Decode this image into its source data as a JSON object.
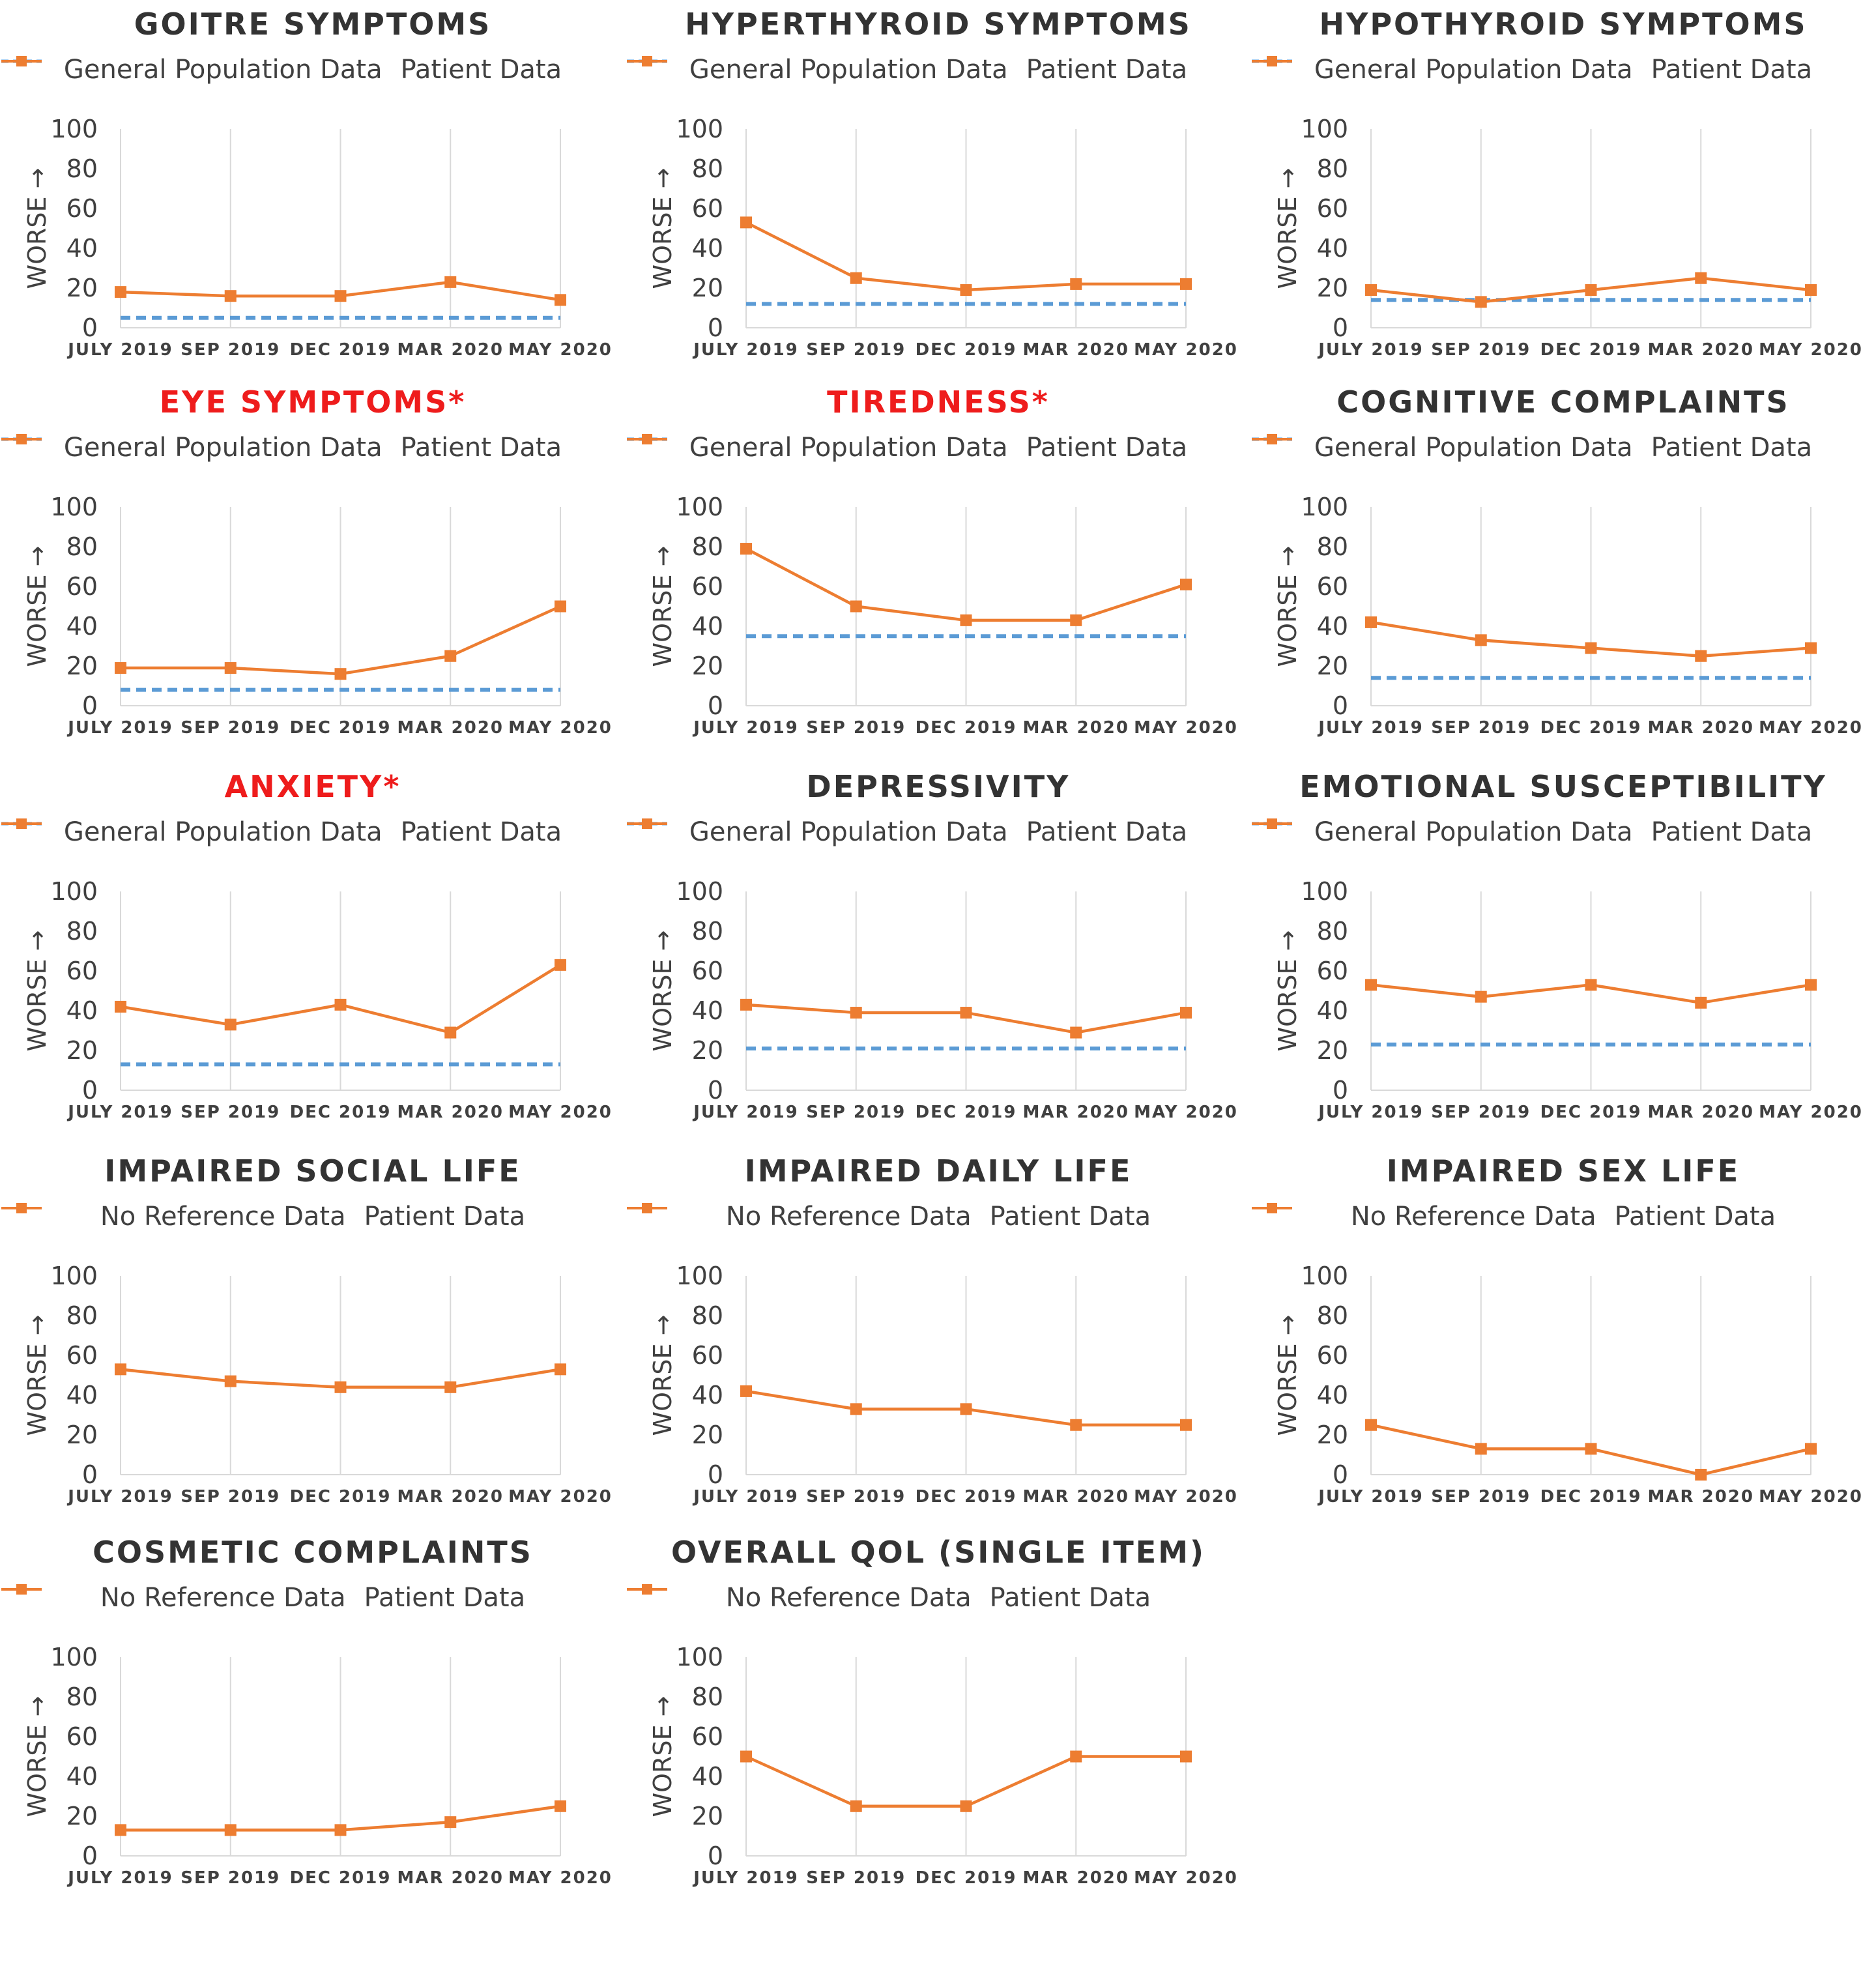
{
  "legend_general": "General Population Data",
  "legend_patient": "Patient Data",
  "legend_noref": "No Reference Data",
  "y_axis_title": "WORSE →",
  "colors": {
    "patient": "#ed7d31",
    "general": "#5b9bd5",
    "title": "#333333",
    "title_highlight": "#ee1c1c",
    "grid": "#d9d9d9"
  },
  "chart_data": [
    {
      "type": "line",
      "title": "GOITRE SYMPTOMS",
      "highlight": false,
      "categories": [
        "JULY 2019",
        "SEP 2019",
        "DEC 2019",
        "MAR 2020",
        "MAY 2020"
      ],
      "yticks": [
        "0",
        "20",
        "40",
        "60",
        "80",
        "100"
      ],
      "ylim": [
        0,
        100
      ],
      "ylabel": "WORSE →",
      "series": [
        {
          "name": "General Population Data",
          "values": [
            5,
            5,
            5,
            5,
            5
          ]
        },
        {
          "name": "Patient Data",
          "values": [
            18,
            16,
            16,
            23,
            14
          ]
        }
      ]
    },
    {
      "type": "line",
      "title": "HYPERTHYROID SYMPTOMS",
      "highlight": false,
      "categories": [
        "JULY 2019",
        "SEP 2019",
        "DEC 2019",
        "MAR 2020",
        "MAY 2020"
      ],
      "yticks": [
        "0",
        "20",
        "40",
        "60",
        "80",
        "100"
      ],
      "ylim": [
        0,
        100
      ],
      "ylabel": "WORSE →",
      "series": [
        {
          "name": "General Population Data",
          "values": [
            12,
            12,
            12,
            12,
            12
          ]
        },
        {
          "name": "Patient Data",
          "values": [
            53,
            25,
            19,
            22,
            22
          ]
        }
      ]
    },
    {
      "type": "line",
      "title": "HYPOTHYROID SYMPTOMS",
      "highlight": false,
      "categories": [
        "JULY 2019",
        "SEP 2019",
        "DEC 2019",
        "MAR 2020",
        "MAY 2020"
      ],
      "yticks": [
        "0",
        "20",
        "40",
        "60",
        "80",
        "100"
      ],
      "ylim": [
        0,
        100
      ],
      "ylabel": "WORSE →",
      "series": [
        {
          "name": "General Population Data",
          "values": [
            14,
            14,
            14,
            14,
            14
          ]
        },
        {
          "name": "Patient Data",
          "values": [
            19,
            13,
            19,
            25,
            19
          ]
        }
      ]
    },
    {
      "type": "line",
      "title": "EYE SYMPTOMS*",
      "highlight": true,
      "categories": [
        "JULY 2019",
        "SEP 2019",
        "DEC 2019",
        "MAR 2020",
        "MAY 2020"
      ],
      "yticks": [
        "0",
        "20",
        "40",
        "60",
        "80",
        "100"
      ],
      "ylim": [
        0,
        100
      ],
      "ylabel": "WORSE →",
      "series": [
        {
          "name": "General Population Data",
          "values": [
            8,
            8,
            8,
            8,
            8
          ]
        },
        {
          "name": "Patient Data",
          "values": [
            19,
            19,
            16,
            25,
            50
          ]
        }
      ]
    },
    {
      "type": "line",
      "title": "TIREDNESS*",
      "highlight": true,
      "categories": [
        "JULY 2019",
        "SEP 2019",
        "DEC 2019",
        "MAR 2020",
        "MAY 2020"
      ],
      "yticks": [
        "0",
        "20",
        "40",
        "60",
        "80",
        "100"
      ],
      "ylim": [
        0,
        100
      ],
      "ylabel": "WORSE →",
      "series": [
        {
          "name": "General Population Data",
          "values": [
            35,
            35,
            35,
            35,
            35
          ]
        },
        {
          "name": "Patient Data",
          "values": [
            79,
            50,
            43,
            43,
            61
          ]
        }
      ]
    },
    {
      "type": "line",
      "title": "COGNITIVE COMPLAINTS",
      "highlight": false,
      "categories": [
        "JULY 2019",
        "SEP 2019",
        "DEC 2019",
        "MAR 2020",
        "MAY 2020"
      ],
      "yticks": [
        "0",
        "20",
        "40",
        "60",
        "80",
        "100"
      ],
      "ylim": [
        0,
        100
      ],
      "ylabel": "WORSE →",
      "series": [
        {
          "name": "General Population Data",
          "values": [
            14,
            14,
            14,
            14,
            14
          ]
        },
        {
          "name": "Patient Data",
          "values": [
            42,
            33,
            29,
            25,
            29
          ]
        }
      ]
    },
    {
      "type": "line",
      "title": "ANXIETY*",
      "highlight": true,
      "categories": [
        "JULY 2019",
        "SEP 2019",
        "DEC 2019",
        "MAR 2020",
        "MAY 2020"
      ],
      "yticks": [
        "0",
        "20",
        "40",
        "60",
        "80",
        "100"
      ],
      "ylim": [
        0,
        100
      ],
      "ylabel": "WORSE →",
      "series": [
        {
          "name": "General Population Data",
          "values": [
            13,
            13,
            13,
            13,
            13
          ]
        },
        {
          "name": "Patient Data",
          "values": [
            42,
            33,
            43,
            29,
            63
          ]
        }
      ]
    },
    {
      "type": "line",
      "title": "DEPRESSIVITY",
      "highlight": false,
      "categories": [
        "JULY 2019",
        "SEP 2019",
        "DEC 2019",
        "MAR 2020",
        "MAY 2020"
      ],
      "yticks": [
        "0",
        "20",
        "40",
        "60",
        "80",
        "100"
      ],
      "ylim": [
        0,
        100
      ],
      "ylabel": "WORSE →",
      "series": [
        {
          "name": "General Population Data",
          "values": [
            21,
            21,
            21,
            21,
            21
          ]
        },
        {
          "name": "Patient Data",
          "values": [
            43,
            39,
            39,
            29,
            39
          ]
        }
      ]
    },
    {
      "type": "line",
      "title": "EMOTIONAL SUSCEPTIBILITY",
      "highlight": false,
      "categories": [
        "JULY 2019",
        "SEP 2019",
        "DEC 2019",
        "MAR 2020",
        "MAY 2020"
      ],
      "yticks": [
        "0",
        "20",
        "40",
        "60",
        "80",
        "100"
      ],
      "ylim": [
        0,
        100
      ],
      "ylabel": "WORSE →",
      "series": [
        {
          "name": "General Population Data",
          "values": [
            23,
            23,
            23,
            23,
            23
          ]
        },
        {
          "name": "Patient Data",
          "values": [
            53,
            47,
            53,
            44,
            53
          ]
        }
      ]
    },
    {
      "type": "line",
      "title": "IMPAIRED SOCIAL LIFE",
      "highlight": false,
      "categories": [
        "JULY 2019",
        "SEP 2019",
        "DEC 2019",
        "MAR 2020",
        "MAY 2020"
      ],
      "yticks": [
        "0",
        "20",
        "40",
        "60",
        "80",
        "100"
      ],
      "ylim": [
        0,
        100
      ],
      "ylabel": "WORSE →",
      "series": [
        {
          "name": "Patient Data",
          "values": [
            53,
            47,
            44,
            44,
            53
          ]
        }
      ]
    },
    {
      "type": "line",
      "title": "IMPAIRED DAILY LIFE",
      "highlight": false,
      "categories": [
        "JULY 2019",
        "SEP 2019",
        "DEC 2019",
        "MAR 2020",
        "MAY 2020"
      ],
      "yticks": [
        "0",
        "20",
        "40",
        "60",
        "80",
        "100"
      ],
      "ylim": [
        0,
        100
      ],
      "ylabel": "WORSE →",
      "series": [
        {
          "name": "Patient Data",
          "values": [
            42,
            33,
            33,
            25,
            25
          ]
        }
      ]
    },
    {
      "type": "line",
      "title": "IMPAIRED SEX LIFE",
      "highlight": false,
      "categories": [
        "JULY 2019",
        "SEP 2019",
        "DEC 2019",
        "MAR 2020",
        "MAY 2020"
      ],
      "yticks": [
        "0",
        "20",
        "40",
        "60",
        "80",
        "100"
      ],
      "ylim": [
        0,
        100
      ],
      "ylabel": "WORSE →",
      "series": [
        {
          "name": "Patient Data",
          "values": [
            25,
            13,
            13,
            0,
            13
          ]
        }
      ]
    },
    {
      "type": "line",
      "title": "COSMETIC COMPLAINTS",
      "highlight": false,
      "categories": [
        "JULY 2019",
        "SEP 2019",
        "DEC 2019",
        "MAR 2020",
        "MAY 2020"
      ],
      "yticks": [
        "0",
        "20",
        "40",
        "60",
        "80",
        "100"
      ],
      "ylim": [
        0,
        100
      ],
      "ylabel": "WORSE →",
      "series": [
        {
          "name": "Patient Data",
          "values": [
            13,
            13,
            13,
            17,
            25
          ]
        }
      ]
    },
    {
      "type": "line",
      "title": "OVERALL QOL (SINGLE ITEM)",
      "highlight": false,
      "categories": [
        "JULY 2019",
        "SEP 2019",
        "DEC 2019",
        "MAR 2020",
        "MAY 2020"
      ],
      "yticks": [
        "0",
        "20",
        "40",
        "60",
        "80",
        "100"
      ],
      "ylim": [
        0,
        100
      ],
      "ylabel": "WORSE →",
      "series": [
        {
          "name": "Patient Data",
          "values": [
            50,
            25,
            25,
            50,
            50
          ]
        }
      ]
    }
  ]
}
